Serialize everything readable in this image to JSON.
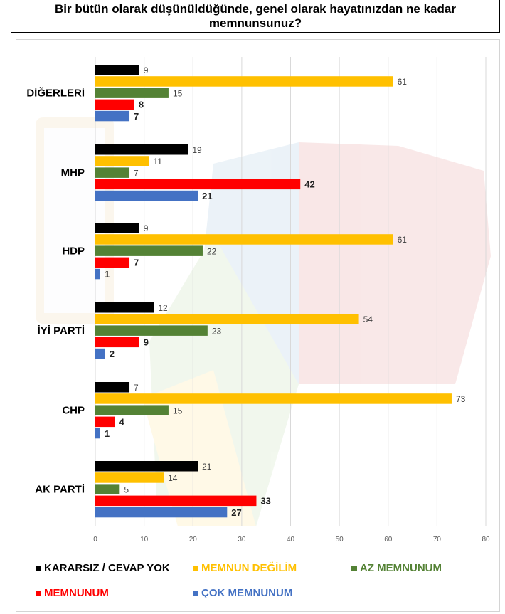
{
  "title": "Bir bütün olarak düşünüldüğünde, genel olarak hayatınızdan ne kadar memnunsunuz?",
  "chart_data": {
    "type": "bar",
    "orientation": "horizontal",
    "categories": [
      "DİĞERLERİ",
      "MHP",
      "HDP",
      "İYİ PARTİ",
      "CHP",
      "AK PARTİ"
    ],
    "series": [
      {
        "name": "KARARSIZ / CEVAP YOK",
        "color": "#000000",
        "values": [
          9,
          19,
          9,
          12,
          7,
          21
        ]
      },
      {
        "name": "MEMNUN DEĞİLİM",
        "color": "#FFC000",
        "values": [
          61,
          11,
          61,
          54,
          73,
          14
        ]
      },
      {
        "name": "AZ MEMNUNUM",
        "color": "#548235",
        "values": [
          15,
          7,
          22,
          23,
          15,
          5
        ]
      },
      {
        "name": "MEMNUNUM",
        "color": "#FF0000",
        "values": [
          8,
          42,
          7,
          9,
          4,
          33
        ]
      },
      {
        "name": "ÇOK MEMNUNUM",
        "color": "#4472C4",
        "values": [
          7,
          21,
          1,
          2,
          1,
          27
        ]
      }
    ],
    "xlim": [
      0,
      80
    ],
    "xticks": [
      0,
      10,
      20,
      30,
      40,
      50,
      60,
      70,
      80
    ],
    "grid": true,
    "legend": "bottom"
  }
}
